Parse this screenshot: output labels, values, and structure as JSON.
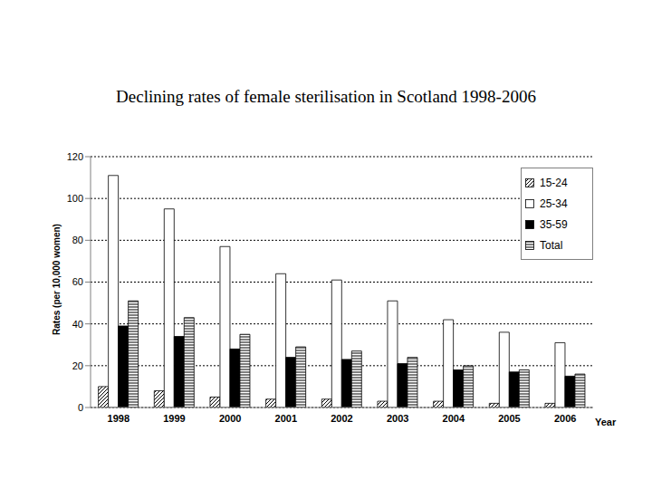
{
  "chart_data": {
    "type": "bar",
    "title": "Declining rates of female sterilisation in Scotland 1998-2006",
    "x_label": "Year",
    "y_label": "Rates (per 10,000 women)",
    "categories": [
      "1998",
      "1999",
      "2000",
      "2001",
      "2002",
      "2003",
      "2004",
      "2005",
      "2006"
    ],
    "series": [
      {
        "name": "15-24",
        "color": "#000000",
        "values": [
          10,
          8,
          5,
          4,
          4,
          3,
          3,
          2,
          2
        ]
      },
      {
        "name": "25-34",
        "color": "#ffffff",
        "values": [
          111,
          95,
          77,
          64,
          61,
          51,
          42,
          36,
          31
        ]
      },
      {
        "name": "35-59",
        "color": "#000000",
        "values": [
          39,
          34,
          28,
          24,
          23,
          21,
          18,
          17,
          15
        ]
      },
      {
        "name": "Total",
        "color": "#000000",
        "values": [
          51,
          43,
          35,
          29,
          27,
          24,
          20,
          18,
          16
        ]
      }
    ],
    "ylim": [
      0,
      120
    ],
    "yticks": [
      0,
      20,
      40,
      60,
      80,
      100,
      120
    ],
    "grid": true,
    "legend": "top-right"
  }
}
